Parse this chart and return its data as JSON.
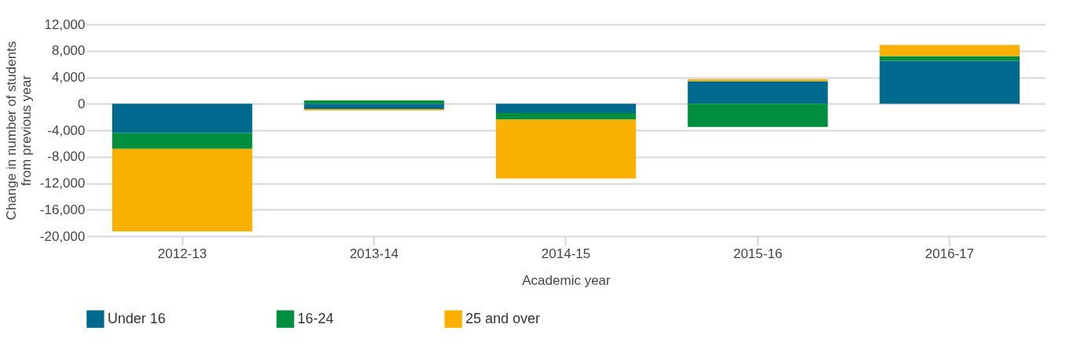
{
  "chart_data": {
    "type": "bar",
    "stacked": true,
    "xlabel": "Academic year",
    "ylabel": "Change in number of students\nfrom previous year",
    "categories": [
      "2012-13",
      "2013-14",
      "2014-15",
      "2015-16",
      "2016-17"
    ],
    "series": [
      {
        "name": "Under 16",
        "color": "#006a8e",
        "values": [
          -4400,
          -800,
          -1400,
          3400,
          6500
        ]
      },
      {
        "name": "16-24",
        "color": "#008f3f",
        "values": [
          -2400,
          500,
          -1000,
          -3500,
          700
        ]
      },
      {
        "name": "25 and over",
        "color": "#f9b000",
        "values": [
          -12500,
          -200,
          -8900,
          300,
          1700
        ]
      }
    ],
    "ylim": [
      -20000,
      12000
    ],
    "yticks": [
      {
        "value": -20000,
        "label": "-20,000"
      },
      {
        "value": -16000,
        "label": "-16,000"
      },
      {
        "value": -12000,
        "label": "-12,000"
      },
      {
        "value": -8000,
        "label": "-8,000"
      },
      {
        "value": -4000,
        "label": "-4,000"
      },
      0,
      {
        "value": 4000,
        "label": "4,000"
      },
      {
        "value": 8000,
        "label": "8,000"
      },
      {
        "value": 12000,
        "label": "12,000"
      }
    ],
    "grid": "y",
    "legend": "bottom"
  }
}
